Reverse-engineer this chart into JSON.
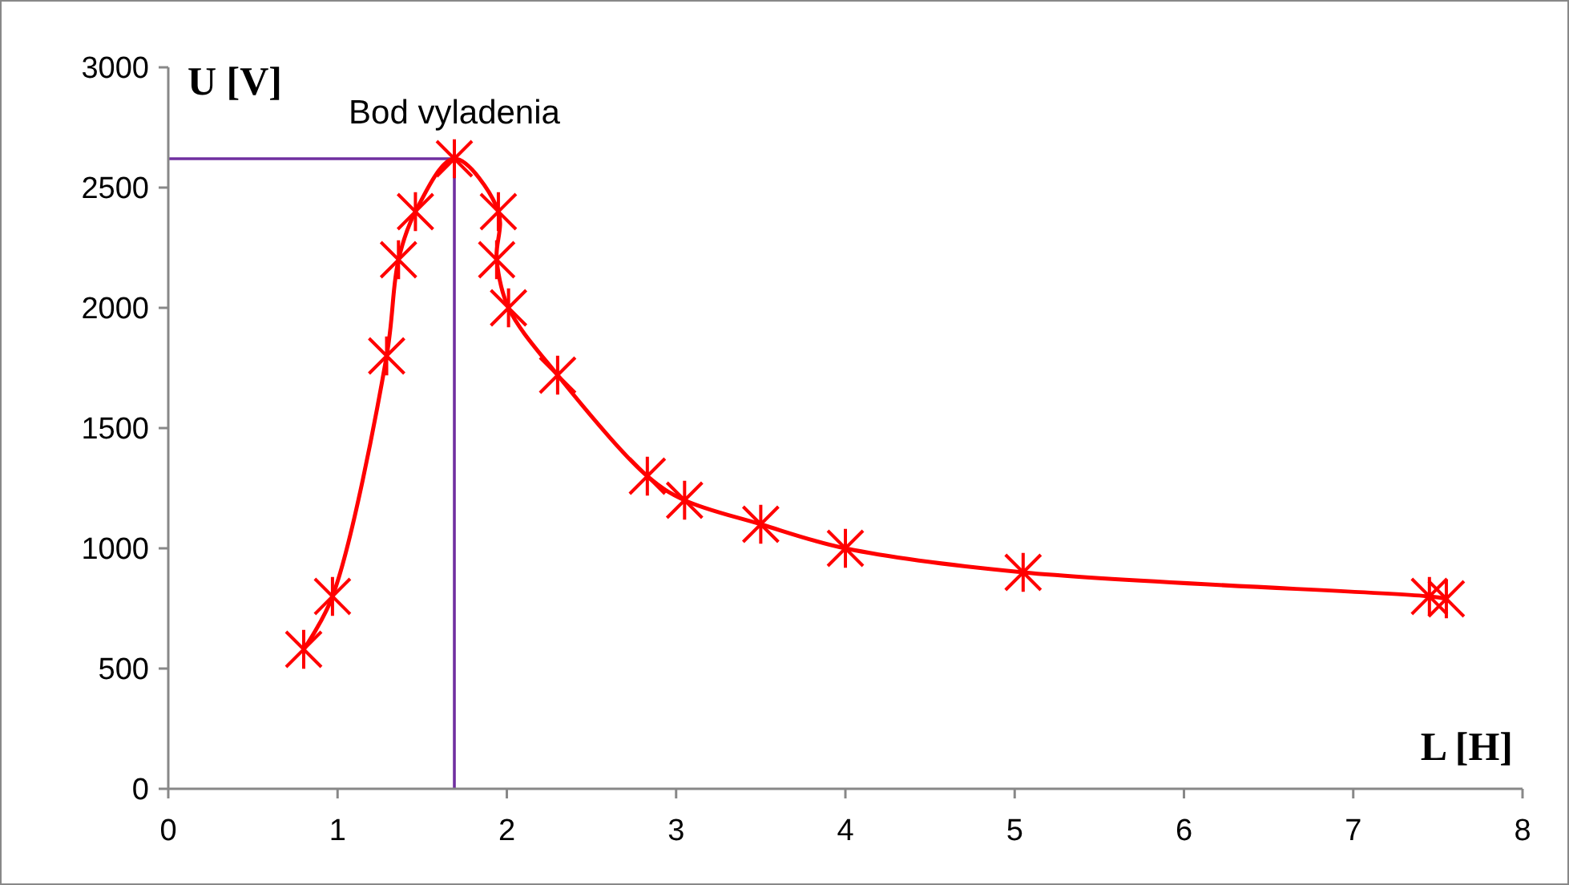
{
  "chart_data": {
    "type": "line",
    "xlabel": "L [H]",
    "ylabel": "U [V]",
    "xlim": [
      0,
      8
    ],
    "xticks": [
      0,
      1,
      2,
      3,
      4,
      5,
      6,
      7,
      8
    ],
    "ylim": [
      0,
      3000
    ],
    "yticks": [
      0,
      500,
      1000,
      1500,
      2000,
      2500,
      3000
    ],
    "grid": false,
    "marker": "cross",
    "line_style": "solid",
    "series": [
      {
        "color": "#ff0000",
        "x": [
          0.8,
          0.97,
          1.29,
          1.36,
          1.46,
          1.69,
          1.95,
          1.94,
          2.01,
          2.3,
          2.83,
          3.05,
          3.5,
          4.0,
          5.05,
          7.45,
          7.55
        ],
        "values": [
          580,
          800,
          1800,
          2200,
          2400,
          2620,
          2400,
          2200,
          2000,
          1720,
          1300,
          1200,
          1100,
          1000,
          900,
          800,
          790
        ]
      }
    ],
    "ref_lines": [
      {
        "axis": "x",
        "value": 1.69,
        "color": "#7030a0"
      },
      {
        "axis": "y",
        "value": 2620,
        "color": "#7030a0"
      }
    ],
    "annotations": [
      {
        "text": "Bod vyladenia",
        "x": 1.69,
        "y": 2620
      }
    ]
  }
}
